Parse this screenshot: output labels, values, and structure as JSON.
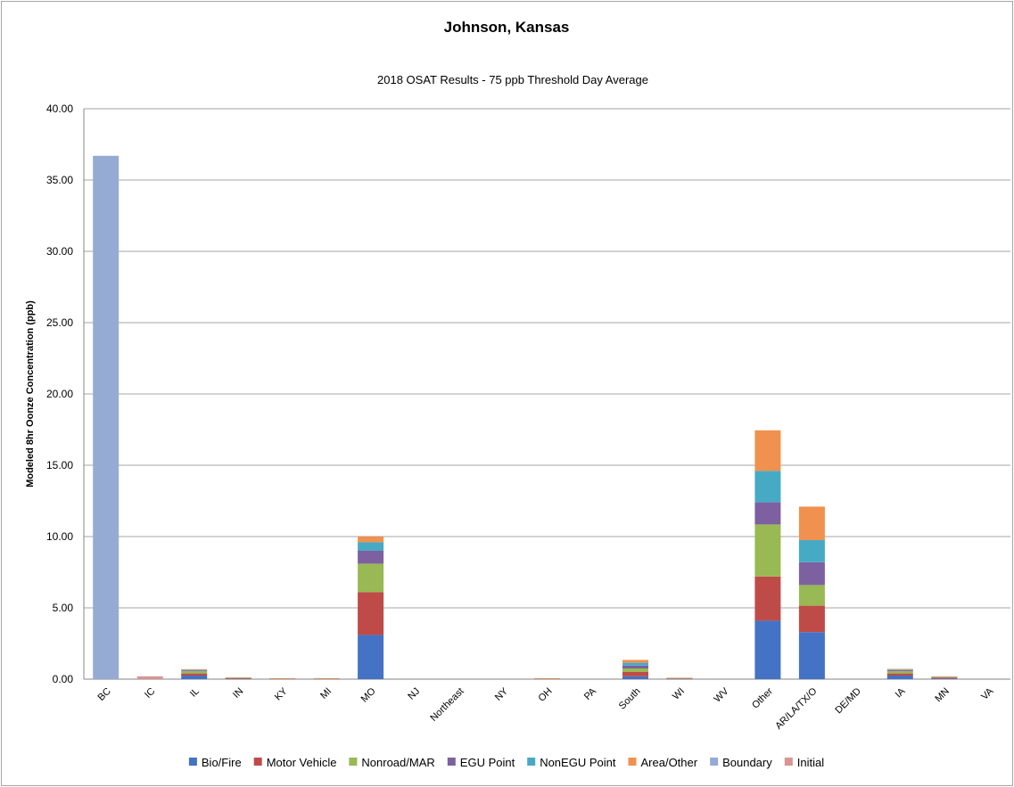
{
  "chart_data": {
    "type": "bar",
    "stacked": true,
    "title": "Johnson, Kansas",
    "subtitle": "2018 OSAT Results - 75 ppb Threshold Day Average",
    "xlabel": "",
    "ylabel": "Modeled 8hr Oonze Concentration (ppb)",
    "ylim": [
      0,
      40
    ],
    "yticks": [
      "0.00",
      "5.00",
      "10.00",
      "15.00",
      "20.00",
      "25.00",
      "30.00",
      "35.00",
      "40.00"
    ],
    "grid": true,
    "legend_position": "bottom",
    "categories": [
      "BC",
      "IC",
      "IL",
      "IN",
      "KY",
      "MI",
      "MO",
      "NJ",
      "Northeast",
      "NY",
      "OH",
      "PA",
      "South",
      "WI",
      "WV",
      "Other",
      "AR/LA/TX/O",
      "DE/MD",
      "IA",
      "MN",
      "VA"
    ],
    "series": [
      {
        "name": "Bio/Fire",
        "color": "#4472C4",
        "values": [
          0,
          0,
          0.25,
          0.04,
          0.02,
          0.02,
          3.1,
          0,
          0,
          0,
          0.02,
          0,
          0.2,
          0.03,
          0,
          4.1,
          3.3,
          0,
          0.25,
          0.05,
          0
        ]
      },
      {
        "name": "Motor Vehicle",
        "color": "#BE4B48",
        "values": [
          0,
          0,
          0.15,
          0.02,
          0.01,
          0.01,
          3.0,
          0,
          0,
          0,
          0.01,
          0,
          0.3,
          0.02,
          0,
          3.1,
          1.85,
          0,
          0.15,
          0.03,
          0
        ]
      },
      {
        "name": "Nonroad/MAR",
        "color": "#98B954",
        "values": [
          0,
          0,
          0.15,
          0.03,
          0.01,
          0.01,
          2.0,
          0,
          0,
          0,
          0.01,
          0,
          0.25,
          0.02,
          0,
          3.65,
          1.45,
          0,
          0.15,
          0.05,
          0
        ]
      },
      {
        "name": "EGU Point",
        "color": "#7D60A0",
        "values": [
          0,
          0,
          0.05,
          0.01,
          0.01,
          0.01,
          0.9,
          0,
          0,
          0,
          0.01,
          0,
          0.2,
          0.01,
          0,
          1.55,
          1.6,
          0,
          0.07,
          0.02,
          0
        ]
      },
      {
        "name": "NonEGU Point",
        "color": "#46AAC5",
        "values": [
          0,
          0,
          0.05,
          0.01,
          0.01,
          0.01,
          0.6,
          0,
          0,
          0,
          0.01,
          0,
          0.2,
          0.01,
          0,
          2.2,
          1.55,
          0,
          0.05,
          0.02,
          0
        ]
      },
      {
        "name": "Area/Other",
        "color": "#F0914F",
        "values": [
          0,
          0,
          0.05,
          0.01,
          0.01,
          0.01,
          0.4,
          0,
          0,
          0,
          0.01,
          0,
          0.2,
          0.01,
          0,
          2.85,
          2.35,
          0,
          0.05,
          0.02,
          0
        ]
      },
      {
        "name": "Boundary",
        "color": "#95ABD4",
        "values": [
          36.7,
          0,
          0,
          0,
          0,
          0,
          0,
          0,
          0,
          0,
          0,
          0,
          0,
          0,
          0,
          0,
          0,
          0,
          0,
          0,
          0
        ]
      },
      {
        "name": "Initial",
        "color": "#D99594",
        "values": [
          0,
          0.2,
          0,
          0,
          0,
          0,
          0,
          0,
          0,
          0,
          0,
          0,
          0,
          0,
          0,
          0,
          0,
          0,
          0,
          0,
          0
        ]
      }
    ]
  }
}
